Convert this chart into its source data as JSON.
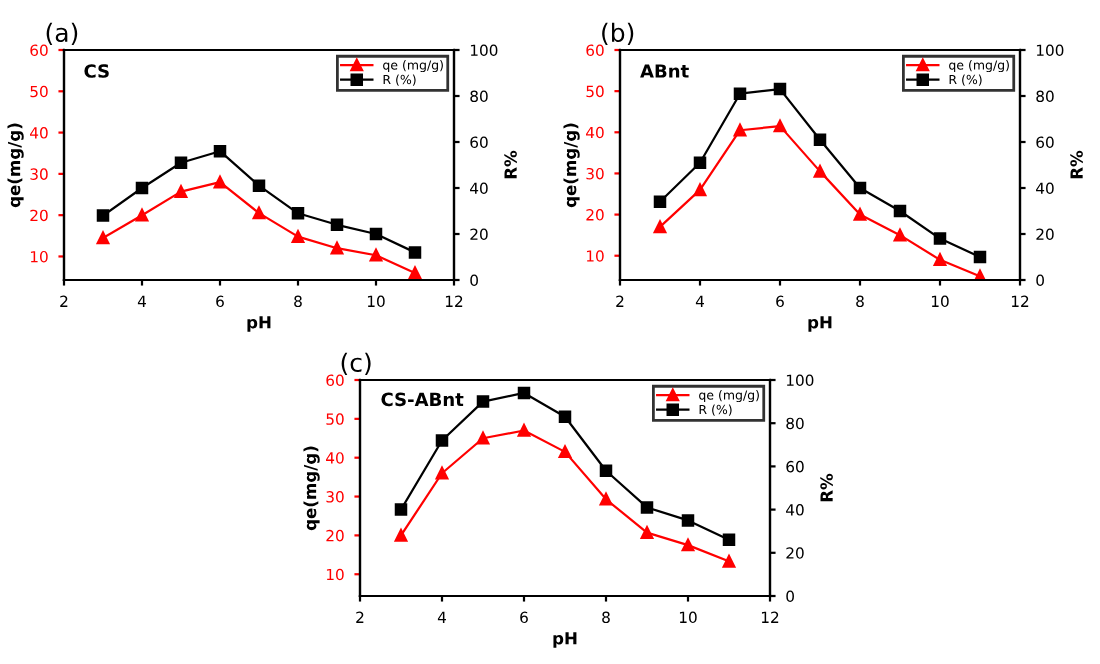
{
  "chart_data": [
    {
      "type": "line",
      "title": "(a)",
      "xlabel": "pH",
      "ylabel": "qe(mg/g)",
      "y2label": "R%",
      "annotations": [
        "CS"
      ],
      "x": [
        3,
        4,
        5,
        6,
        7,
        8,
        9,
        10,
        11
      ],
      "xlim": [
        2,
        12
      ],
      "xticks": [
        2,
        4,
        6,
        8,
        10,
        12
      ],
      "ylim": [
        4.3,
        60
      ],
      "yticks": [
        10,
        20,
        30,
        40,
        50,
        60
      ],
      "y2lim": [
        0,
        100
      ],
      "y2ticks": [
        0,
        20,
        40,
        60,
        80,
        100
      ],
      "legend": "top right",
      "grid": false,
      "series": [
        {
          "name": "qe (mg/g)",
          "color": "#ff0000",
          "marker": "triangle",
          "values": [
            14.5,
            20,
            25.7,
            28,
            20.5,
            14.8,
            12,
            10.3,
            6
          ]
        },
        {
          "name": "R (%)",
          "color": "#000000",
          "marker": "square",
          "axis": "y2",
          "values": [
            28,
            40,
            51,
            56,
            41,
            29,
            24,
            20,
            12
          ]
        }
      ]
    },
    {
      "type": "line",
      "title": "(b)",
      "xlabel": "pH",
      "ylabel": "qe(mg/g)",
      "y2label": "R%",
      "annotations": [
        "ABnt"
      ],
      "x": [
        3,
        4,
        5,
        6,
        7,
        8,
        9,
        10,
        11
      ],
      "xlim": [
        2,
        12
      ],
      "xticks": [
        2,
        4,
        6,
        8,
        10,
        12
      ],
      "ylim": [
        4.1,
        60
      ],
      "yticks": [
        10,
        20,
        30,
        40,
        50,
        60
      ],
      "y2lim": [
        0,
        100
      ],
      "y2ticks": [
        0,
        20,
        40,
        60,
        80,
        100
      ],
      "legend": "top right",
      "grid": false,
      "series": [
        {
          "name": "qe (mg/g)",
          "color": "#ff0000",
          "marker": "triangle",
          "values": [
            17,
            26,
            40.5,
            41.5,
            30.5,
            20,
            15,
            9,
            5
          ]
        },
        {
          "name": "R (%)",
          "color": "#000000",
          "marker": "square",
          "axis": "y2",
          "values": [
            34,
            51,
            81,
            83,
            61,
            40,
            30,
            18,
            10
          ]
        }
      ]
    },
    {
      "type": "line",
      "title": "(c)",
      "xlabel": "pH",
      "ylabel": "qe(mg/g)",
      "y2label": "R%",
      "annotations": [
        "CS-ABnt"
      ],
      "x": [
        3,
        4,
        5,
        6,
        7,
        8,
        9,
        10,
        11
      ],
      "xlim": [
        2,
        12
      ],
      "xticks": [
        2,
        4,
        6,
        8,
        10,
        12
      ],
      "ylim": [
        4.4,
        60
      ],
      "yticks": [
        10,
        20,
        30,
        40,
        50,
        60
      ],
      "y2lim": [
        0,
        100
      ],
      "y2ticks": [
        0,
        20,
        40,
        60,
        80,
        100
      ],
      "legend": "top right",
      "grid": false,
      "series": [
        {
          "name": "qe (mg/g)",
          "color": "#ff0000",
          "marker": "triangle",
          "values": [
            20,
            36,
            45,
            47,
            41.5,
            29.3,
            20.7,
            17.5,
            13.3
          ]
        },
        {
          "name": "R (%)",
          "color": "#000000",
          "marker": "square",
          "axis": "y2",
          "values": [
            40,
            72,
            90,
            94,
            83,
            58,
            41,
            35,
            26
          ]
        }
      ]
    }
  ]
}
